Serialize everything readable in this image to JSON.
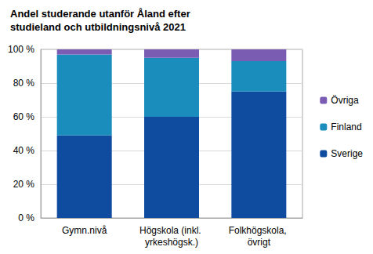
{
  "chart_data": {
    "type": "bar",
    "title": "Andel studerande utanför Åland efter studieland och utbildningsnivå 2021",
    "categories": [
      "Gymn.nivå",
      "Högskola (inkl. yrkeshögsk.)",
      "Folkhögskola, övrigt"
    ],
    "series": [
      {
        "name": "Sverige",
        "color": "#0f4ca0",
        "values": [
          49,
          60,
          75
        ]
      },
      {
        "name": "Finland",
        "color": "#1a8dbd",
        "values": [
          48,
          35,
          18
        ]
      },
      {
        "name": "Övriga",
        "color": "#7b5cb3",
        "values": [
          3,
          5,
          7
        ]
      }
    ],
    "stacked": true,
    "ylim": [
      0,
      100
    ],
    "yticks": [
      {
        "value": 0,
        "label": "0 %"
      },
      {
        "value": 20,
        "label": "20 %"
      },
      {
        "value": 40,
        "label": "40 %"
      },
      {
        "value": 60,
        "label": "60 %"
      },
      {
        "value": 80,
        "label": "80 %"
      },
      {
        "value": 100,
        "label": "100 %"
      }
    ],
    "grid": true,
    "legend": "right"
  }
}
